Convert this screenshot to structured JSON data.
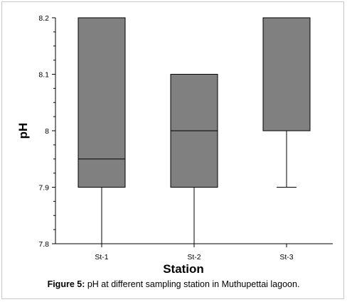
{
  "chart_data": {
    "type": "box",
    "xlabel": "Station",
    "ylabel": "pH",
    "ylim": [
      7.8,
      8.2
    ],
    "yticks": [
      "7.8",
      "7.9",
      "8",
      "8.1",
      "8.2"
    ],
    "categories": [
      "St-1",
      "St-2",
      "St-3"
    ],
    "boxes": [
      {
        "category": "St-1",
        "whisker_low": 7.8,
        "q1": 7.9,
        "median": 7.95,
        "q3": 8.2,
        "whisker_high": 8.2
      },
      {
        "category": "St-2",
        "whisker_low": 7.8,
        "q1": 7.9,
        "median": 8.0,
        "q3": 8.1,
        "whisker_high": 8.1
      },
      {
        "category": "St-3",
        "whisker_low": 7.9,
        "q1": 8.0,
        "median": 8.0,
        "q3": 8.2,
        "whisker_high": 8.2
      }
    ],
    "box_color": "#808080",
    "grid": false
  },
  "caption": {
    "label": "Figure 5:",
    "text": " pH at different sampling station in Muthupettai lagoon."
  }
}
